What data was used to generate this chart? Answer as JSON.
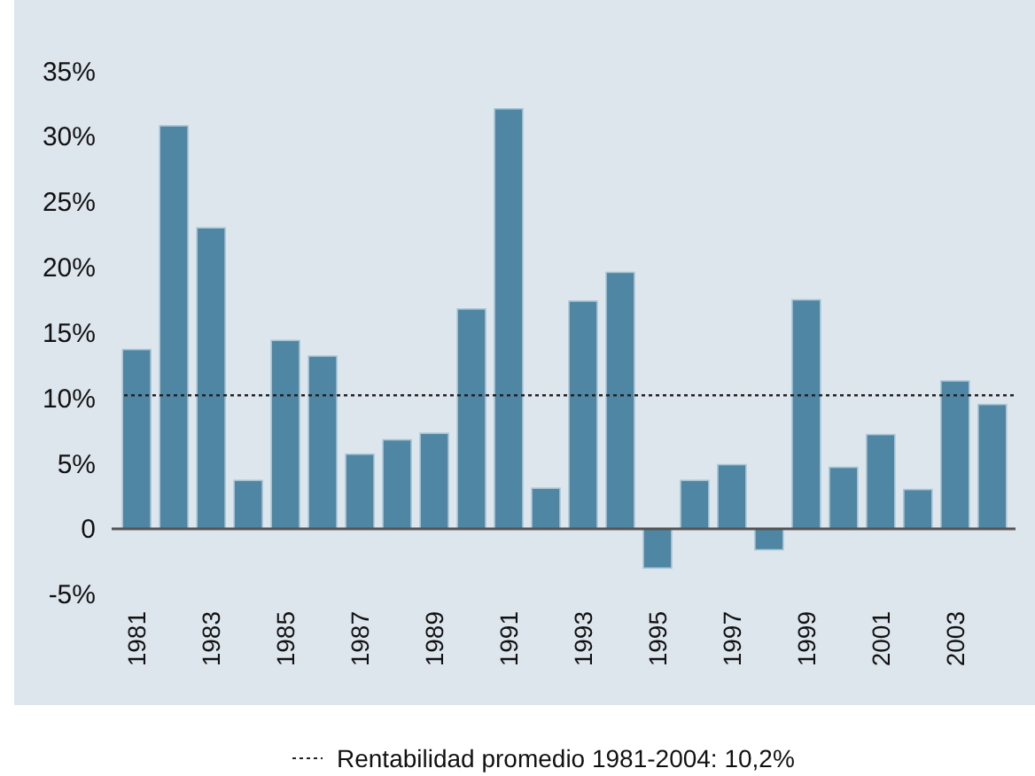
{
  "chart_data": {
    "type": "bar",
    "categories": [
      "1981",
      null,
      "1983",
      null,
      "1985",
      null,
      "1987",
      null,
      "1989",
      null,
      "1991",
      null,
      "1993",
      null,
      "1995",
      null,
      "1997",
      null,
      "1999",
      null,
      "2001",
      null,
      "2003",
      null
    ],
    "values": [
      13.7,
      30.8,
      23.0,
      3.7,
      14.4,
      13.2,
      5.7,
      6.8,
      7.3,
      16.8,
      32.1,
      3.1,
      17.4,
      19.6,
      -3.0,
      3.7,
      4.9,
      -1.6,
      17.5,
      4.7,
      7.2,
      3.0,
      11.3,
      9.5
    ],
    "color": "#4f86a3",
    "ylim": [
      -5,
      35
    ],
    "yticks": [
      {
        "value": -5,
        "label": "-5%"
      },
      0,
      {
        "value": 5,
        "label": "5%"
      },
      {
        "value": 10,
        "label": "10%"
      },
      {
        "value": 15,
        "label": "15%"
      },
      {
        "value": 20,
        "label": "20%"
      },
      {
        "value": 25,
        "label": "25%"
      },
      {
        "value": 30,
        "label": "30%"
      },
      {
        "value": 35,
        "label": "35%"
      }
    ],
    "grid": false,
    "ref_lines": [
      {
        "axis": "y",
        "value": 10.2,
        "label": "Rentabilidad promedio 1981-2004: 10,2%",
        "color": "#222222",
        "line_style": "dotted"
      }
    ]
  }
}
